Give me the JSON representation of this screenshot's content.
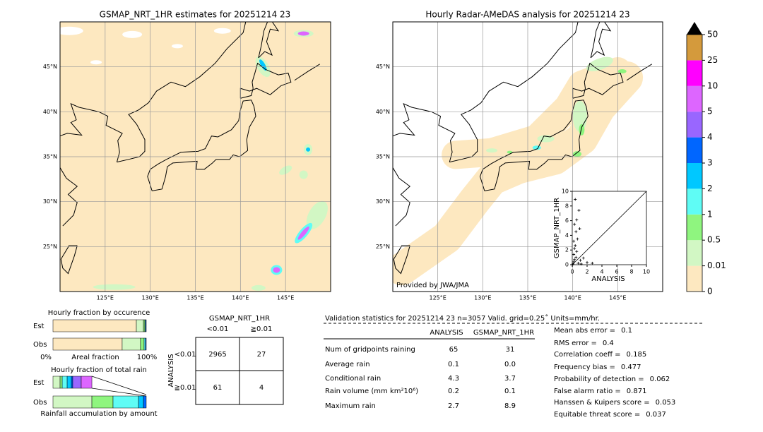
{
  "left_map": {
    "title": "GSMAP_NRT_1HR estimates for 20251214 23",
    "xlim": [
      120,
      150
    ],
    "ylim": [
      20,
      50
    ],
    "xticks": [
      {
        "value": 125,
        "label": "125°E"
      },
      {
        "value": 130,
        "label": "130°E"
      },
      {
        "value": 135,
        "label": "135°E"
      },
      {
        "value": 140,
        "label": "140°E"
      },
      {
        "value": 145,
        "label": "145°E"
      }
    ],
    "yticks": [
      {
        "value": 25,
        "label": "25°N"
      },
      {
        "value": 30,
        "label": "30°N"
      },
      {
        "value": 35,
        "label": "35°N"
      },
      {
        "value": 40,
        "label": "40°N"
      },
      {
        "value": 45,
        "label": "45°N"
      }
    ]
  },
  "right_map": {
    "title": "Hourly Radar-AMeDAS analysis for 20251214 23",
    "credit": "Provided by JWA/JMA",
    "xlim": [
      120,
      150
    ],
    "ylim": [
      20,
      50
    ],
    "xticks": [
      {
        "value": 125,
        "label": "125°E"
      },
      {
        "value": 130,
        "label": "130°E"
      },
      {
        "value": 135,
        "label": "135°E"
      },
      {
        "value": 140,
        "label": "140°E"
      },
      {
        "value": 145,
        "label": "145°E"
      }
    ],
    "yticks": [
      {
        "value": 25,
        "label": "25°N"
      },
      {
        "value": 30,
        "label": "30°N"
      },
      {
        "value": 35,
        "label": "35°N"
      },
      {
        "value": 40,
        "label": "40°N"
      },
      {
        "value": 45,
        "label": "45°N"
      }
    ]
  },
  "colorbar": {
    "levels": [
      0,
      0.01,
      0.5,
      1,
      2,
      3,
      4,
      5,
      10,
      25,
      50
    ],
    "colors": [
      "#fde8c0",
      "#d2f7c4",
      "#8ff57f",
      "#5ffcf5",
      "#00c8ff",
      "#0066ff",
      "#9966ff",
      "#dd66ff",
      "#ff00ff",
      "#d49a3c"
    ]
  },
  "scatter": {
    "type": "scatter",
    "xlabel": "ANALYSIS",
    "ylabel": "GSMAP_NRT_1HR",
    "xlim": [
      0,
      10
    ],
    "ylim": [
      0,
      10
    ],
    "xticks": [
      0,
      2,
      4,
      6,
      8,
      10
    ],
    "yticks": [
      0,
      2,
      4,
      6,
      8,
      10
    ],
    "x": [
      0.4,
      0.9,
      0.6,
      0.3,
      1.0,
      0.5,
      0.2,
      0.4,
      0.3,
      0.6,
      0.2,
      0.5,
      0.3,
      1.1,
      1.5,
      2.0,
      2.7,
      0.1,
      0.8,
      1.2,
      0.2,
      0.7
    ],
    "y": [
      8.9,
      7.4,
      6.1,
      5.5,
      4.9,
      4.5,
      3.2,
      2.6,
      2.2,
      1.8,
      1.4,
      1.0,
      0.7,
      0.6,
      0.9,
      0.3,
      0.2,
      0.1,
      0.2,
      0.1,
      0.4,
      3.5
    ]
  },
  "occurrence": {
    "title": "Hourly fraction by occurence",
    "rows": [
      "Est",
      "Obs"
    ],
    "xlabel": "Areal fraction",
    "xmin_label": "0%",
    "xmax_label": "100%",
    "colors": [
      "#fde8c0",
      "#d2f7c4",
      "#8ff57f",
      "#5ffcf5",
      "#0066ff"
    ],
    "est": [
      89.4,
      7.6,
      1.5,
      0.8,
      0.7
    ],
    "obs": [
      74.2,
      19.7,
      3.8,
      1.5,
      0.8
    ]
  },
  "amount": {
    "title": "Hourly fraction of total rain",
    "rows": [
      "Est",
      "Obs"
    ],
    "xlabel": "Rainfall accumulation by amount",
    "colors": [
      "#d2f7c4",
      "#8ff57f",
      "#5ffcf5",
      "#00c8ff",
      "#0066ff",
      "#9966ff",
      "#dd66ff"
    ],
    "est": [
      7.6,
      2.3,
      5.3,
      4.5,
      1.5,
      9.1,
      11.4
    ],
    "obs": [
      41.7,
      22.7,
      27.3,
      5.3,
      3.0,
      0,
      0
    ]
  },
  "contingency": {
    "title": "GSMAP_NRT_1HR",
    "ylabel": "ANALYSIS",
    "cols": [
      "<0.01",
      "≧0.01"
    ],
    "rows": [
      "<0.01",
      "≧0.01"
    ],
    "cells": [
      [
        "2965",
        "27"
      ],
      [
        "61",
        "4"
      ]
    ]
  },
  "validation": {
    "title": "Validation statistics for 20251214 23  n=3057 Valid. grid=0.25˚ Units=mm/hr.",
    "headers": [
      "ANALYSIS",
      "GSMAP_NRT_1HR"
    ],
    "rows": [
      [
        "Num of gridpoints raining",
        "65",
        "31"
      ],
      [
        "Average rain",
        "0.1",
        "0.0"
      ],
      [
        "Conditional rain",
        "4.3",
        "3.7"
      ],
      [
        "Rain volume (mm km²10⁶)",
        "0.2",
        "0.1"
      ],
      [
        "Maximum rain",
        "2.7",
        "8.9"
      ]
    ],
    "scores": [
      [
        "Mean abs error =",
        "0.1"
      ],
      [
        "RMS error =",
        "0.4"
      ],
      [
        "Correlation coeff =",
        "0.185"
      ],
      [
        "Frequency bias =",
        "0.477"
      ],
      [
        "Probability of detection =",
        "0.062"
      ],
      [
        "False alarm ratio =",
        "0.871"
      ],
      [
        "Hanssen & Kuipers score =",
        "0.053"
      ],
      [
        "Equitable threat score =",
        "0.037"
      ]
    ]
  }
}
